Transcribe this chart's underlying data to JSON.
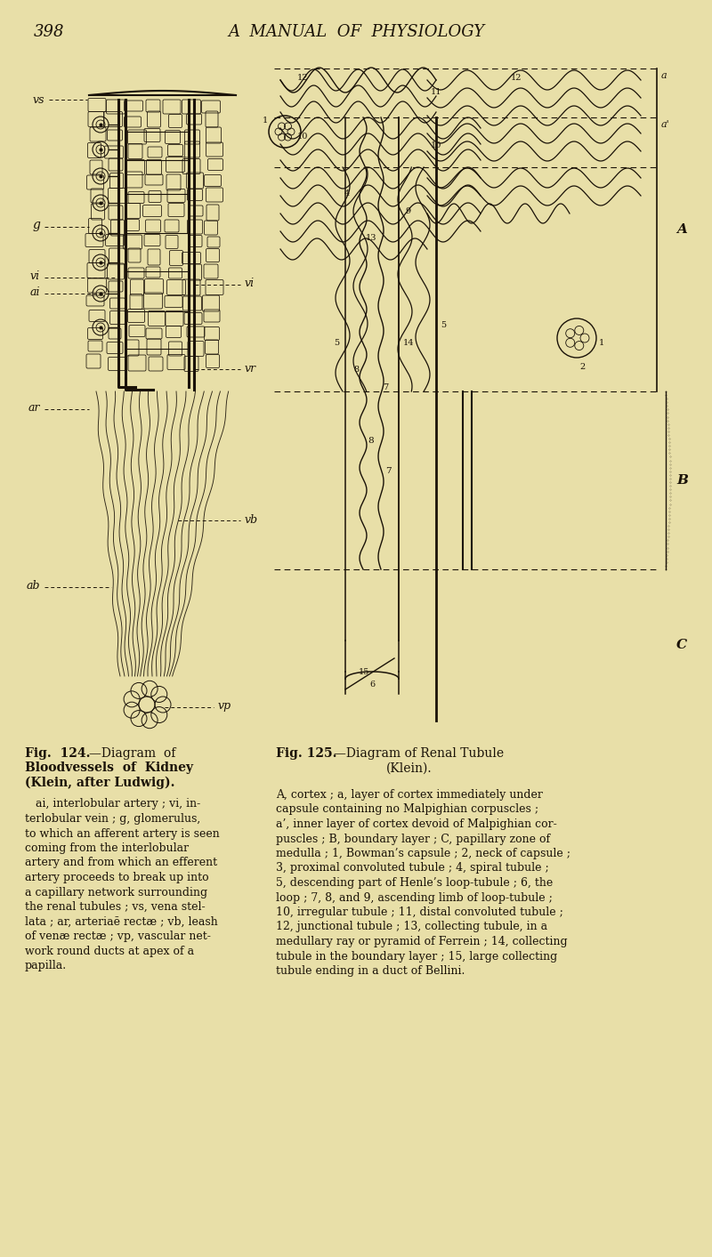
{
  "bg_color": "#e8dfa8",
  "text_color": "#1a1208",
  "line_color": "#1a1208",
  "page_number": "398",
  "page_title": "A  MANUAL  OF  PHYSIOLOGY",
  "fig124_cap_line1": "Fig.  124. —Diagram  of",
  "fig124_cap_line2": "Bloodvessels  of  Kidney",
  "fig124_cap_line3": "(Klein, after Ludwig).",
  "fig124_desc_lines": [
    "   ai, interlobular artery ; vi, in-",
    "terlobular vein ; g, glomerulus,",
    "to which an afferent artery is seen",
    "coming from the interlobular",
    "artery and from which an efferent",
    "artery proceeds to break up into",
    "a capillary network surrounding",
    "the renal tubules ; vs, vena stel-",
    "lata ; ar, arteriaē rectæ ; vb, leash",
    "of venæ rectæ ; vp, vascular net-",
    "work round ducts at apex of a",
    "papilla."
  ],
  "fig125_cap_line1": "Fig. 125.—Diagram of Renal Tubule",
  "fig125_cap_line2": "(Klein).",
  "fig125_desc_lines": [
    "A, cortex ; a, layer of cortex immediately under",
    "capsule containing no Malpighian corpuscles ;",
    "a’, inner layer of cortex devoid of Malpighian cor-",
    "puscles ; B, boundary layer ; C, papillary zone of",
    "medulla ; 1, Bowman’s capsule ; 2, neck of capsule ;",
    "3, proximal convoluted tubule ; 4, spiral tubule ;",
    "5, descending part of Henle’s loop-tubule ; 6, the",
    "loop ; 7, 8, and 9, ascending limb of loop-tubule ;",
    "10, irregular tubule ; 11, distal convoluted tubule ;",
    "12, junctional tubule ; 13, collecting tubule, in a",
    "medullary ray or pyramid of Ferrein ; 14, collecting",
    "tubule in the boundary layer ; 15, large collecting",
    "tubule ending in a duct of Bellini."
  ]
}
